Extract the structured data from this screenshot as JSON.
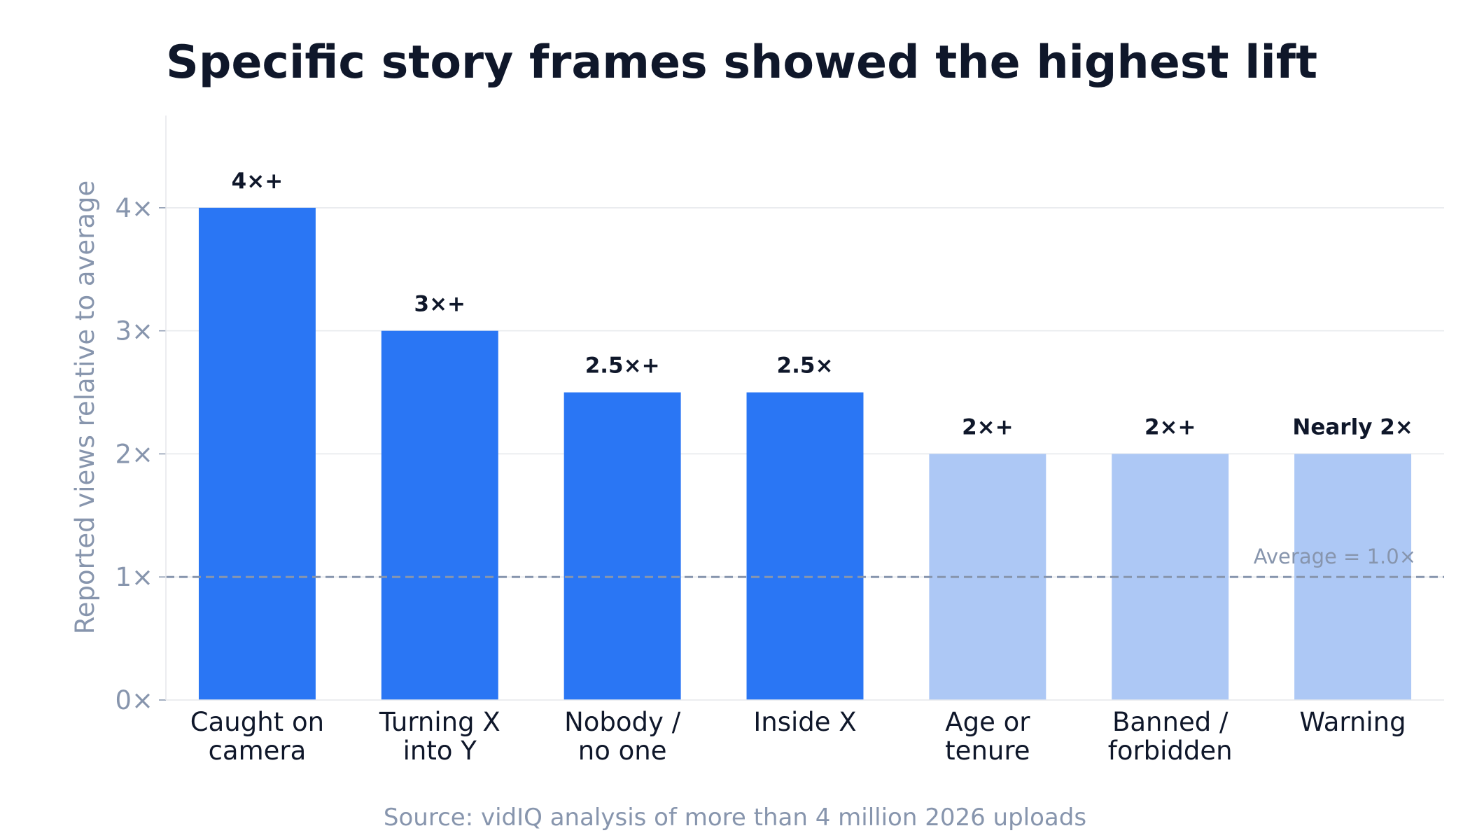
{
  "chart_data": {
    "type": "bar",
    "title": "Specific story frames showed the highest lift",
    "ylabel": "Reported views relative to average",
    "xlabel": "",
    "ylim": [
      0,
      4.75
    ],
    "yticks": [
      0,
      1,
      2,
      3,
      4
    ],
    "ytick_labels": [
      "0×",
      "1×",
      "2×",
      "3×",
      "4×"
    ],
    "grid": true,
    "categories": [
      [
        "Caught on",
        "camera"
      ],
      [
        "Turning X",
        "into Y"
      ],
      [
        "Nobody /",
        "no one"
      ],
      [
        "Inside X"
      ],
      [
        "Age or",
        "tenure"
      ],
      [
        "Banned /",
        "forbidden"
      ],
      [
        "Warning"
      ]
    ],
    "values": [
      4,
      3,
      2.5,
      2.5,
      2,
      2,
      2
    ],
    "data_labels": [
      "4×+",
      "3×+",
      "2.5×+",
      "2.5×",
      "2×+",
      "2×+",
      "Nearly 2×"
    ],
    "bar_colors": [
      "#2a76f4",
      "#2a76f4",
      "#2a76f4",
      "#2a76f4",
      "#adc8f5",
      "#adc8f5",
      "#adc8f5"
    ],
    "reference_line": {
      "value": 1,
      "label": "Average = 1.0×",
      "color": "#8795ad"
    },
    "colors": {
      "text": "#0f172a",
      "axis": "#8795ad",
      "grid": "#e5e7eb"
    }
  },
  "source": "Source: vidIQ analysis of more than 4 million 2026 uploads"
}
